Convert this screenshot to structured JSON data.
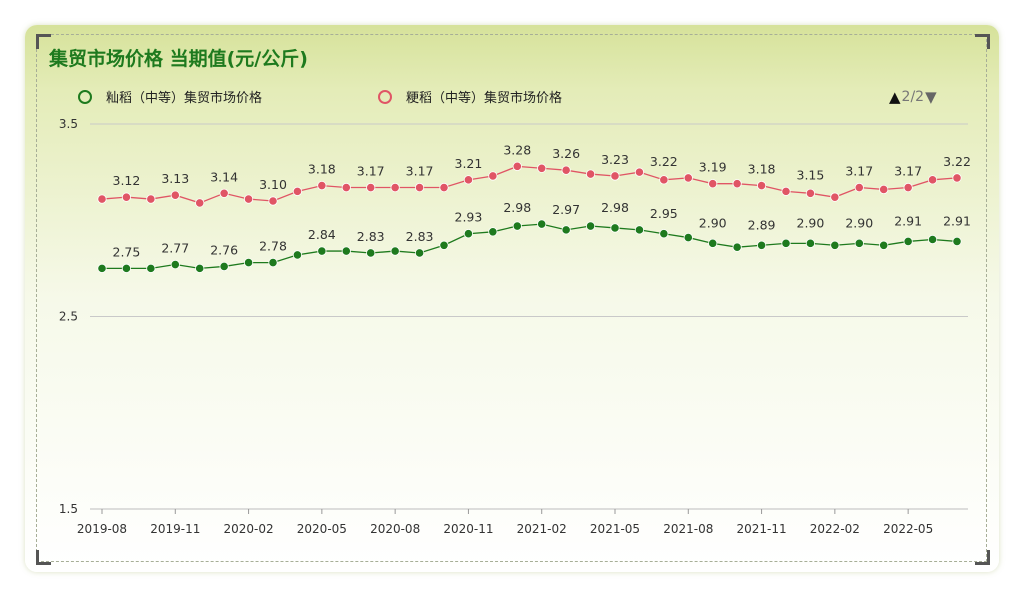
{
  "title": "集贸市场价格 当期值(元/公斤)",
  "legend": [
    {
      "name": "籼稻（中等）集贸市场价格",
      "color": "#1e7a1e"
    },
    {
      "name": "粳稻（中等）集贸市场价格",
      "color": "#e05565"
    }
  ],
  "pager": {
    "up_icon": "▲",
    "text": "2/2",
    "down_icon": "▼"
  },
  "chart_data": {
    "type": "line",
    "x": [
      "2019-08",
      "2019-09",
      "2019-10",
      "2019-11",
      "2019-12",
      "2020-01",
      "2020-02",
      "2020-03",
      "2020-04",
      "2020-05",
      "2020-06",
      "2020-07",
      "2020-08",
      "2020-09",
      "2020-10",
      "2020-11",
      "2020-12",
      "2021-01",
      "2021-02",
      "2021-03",
      "2021-04",
      "2021-05",
      "2021-06",
      "2021-07",
      "2021-08",
      "2021-09",
      "2021-10",
      "2021-11",
      "2021-12",
      "2022-01",
      "2022-02",
      "2022-03",
      "2022-04",
      "2022-05",
      "2022-06",
      "2022-07"
    ],
    "x_tick_labels": [
      "2019-08",
      "2019-11",
      "2020-02",
      "2020-05",
      "2020-08",
      "2020-11",
      "2021-02",
      "2021-05",
      "2021-08",
      "2021-11",
      "2022-02",
      "2022-05"
    ],
    "y_ticks": [
      "3.5",
      "2.5",
      "1.5"
    ],
    "ylim": [
      1.5,
      3.5
    ],
    "series": [
      {
        "name": "籼稻（中等）集贸市场价格",
        "color": "#1e7a1e",
        "values": [
          2.75,
          2.75,
          2.75,
          2.77,
          2.75,
          2.76,
          2.78,
          2.78,
          2.82,
          2.84,
          2.84,
          2.83,
          2.84,
          2.83,
          2.87,
          2.93,
          2.94,
          2.97,
          2.98,
          2.95,
          2.97,
          2.96,
          2.95,
          2.93,
          2.91,
          2.88,
          2.86,
          2.87,
          2.88,
          2.88,
          2.87,
          2.88,
          2.87,
          2.89,
          2.9,
          2.89
        ],
        "labels": [
          "2.75",
          "2.77",
          "2.76",
          "2.78",
          "2.84",
          "2.83",
          "2.83",
          "2.93",
          "2.98",
          "2.97",
          "2.98",
          "2.95",
          "2.90",
          "2.89",
          "2.90",
          "2.90",
          "2.91",
          "2.91"
        ]
      },
      {
        "name": "粳稻（中等）集贸市场价格",
        "color": "#e05565",
        "values": [
          3.11,
          3.12,
          3.11,
          3.13,
          3.09,
          3.14,
          3.11,
          3.1,
          3.15,
          3.18,
          3.17,
          3.17,
          3.17,
          3.17,
          3.17,
          3.21,
          3.23,
          3.28,
          3.27,
          3.26,
          3.24,
          3.23,
          3.25,
          3.21,
          3.22,
          3.19,
          3.19,
          3.18,
          3.15,
          3.14,
          3.12,
          3.17,
          3.16,
          3.17,
          3.21,
          3.22
        ],
        "labels": [
          "3.12",
          "3.13",
          "3.14",
          "3.10",
          "3.18",
          "3.17",
          "3.17",
          "3.21",
          "3.28",
          "3.26",
          "3.23",
          "3.22",
          "3.19",
          "3.18",
          "3.15",
          "3.17",
          "3.17",
          "3.22"
        ]
      }
    ]
  }
}
